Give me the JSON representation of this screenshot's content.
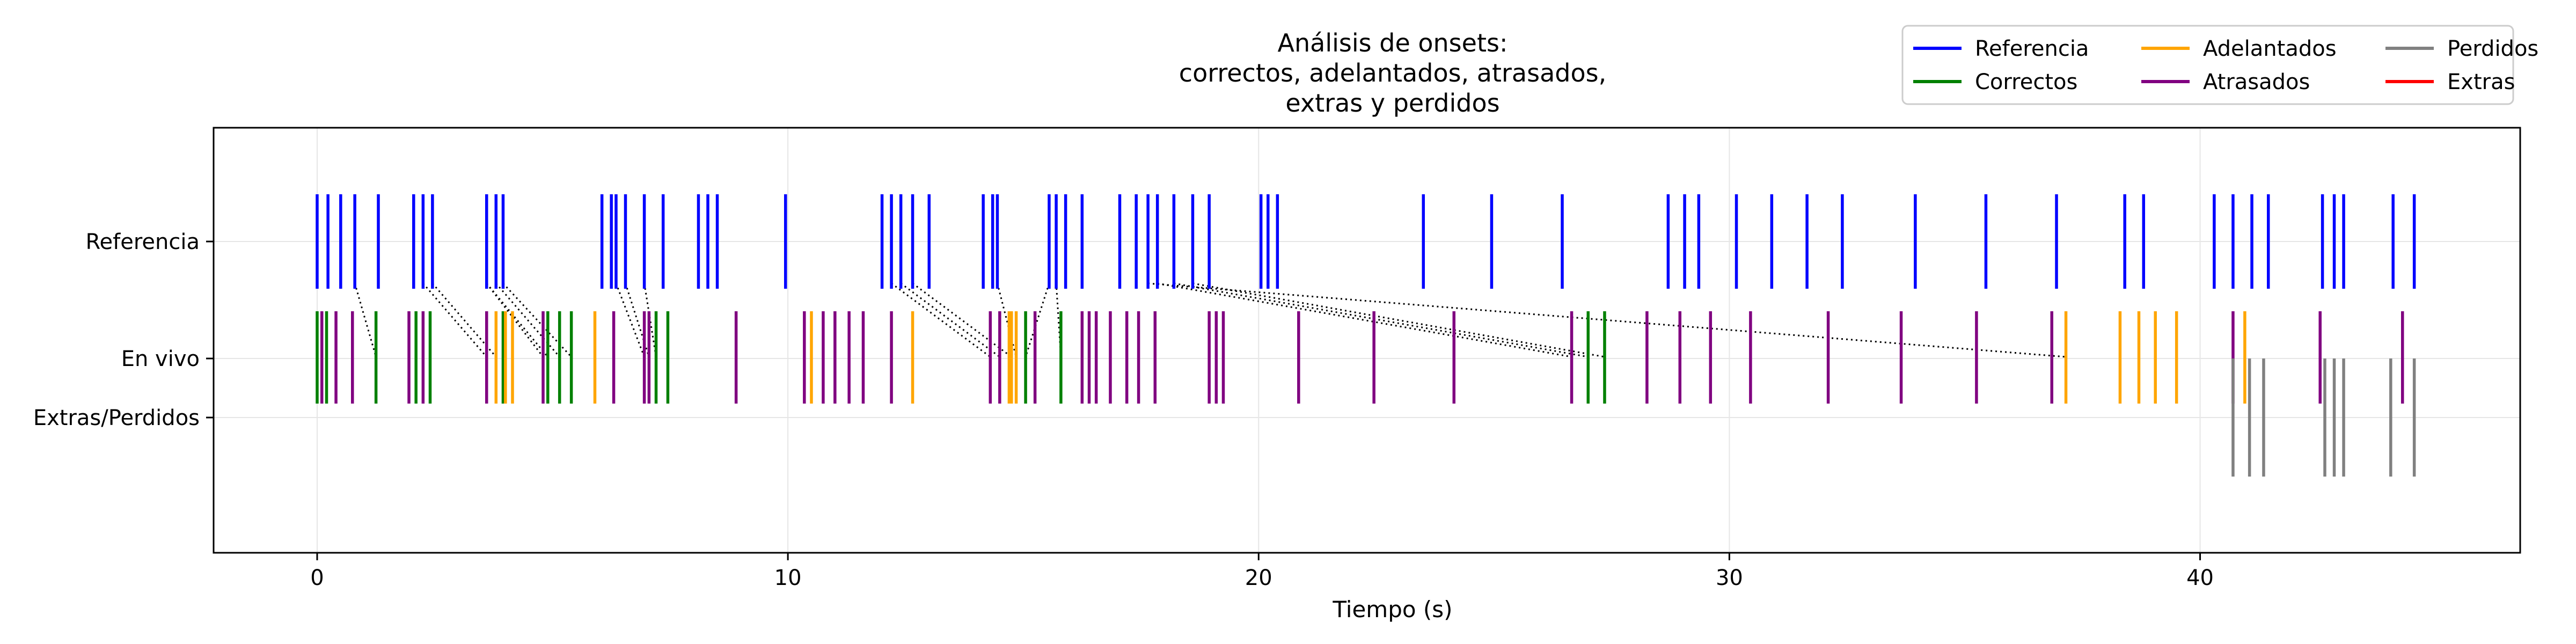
{
  "chart_data": {
    "type": "event-raster",
    "title": [
      "Análisis de onsets:",
      "correctos, adelantados, atrasados,",
      "extras y perdidos"
    ],
    "xlabel": "Tiempo (s)",
    "ylabel": "",
    "xlim": [
      -2.2,
      46.8
    ],
    "x_ticks": [
      0,
      10,
      20,
      30,
      40
    ],
    "rows": [
      "Referencia",
      "En vivo",
      "Extras/Perdidos"
    ],
    "grid": true,
    "legend_position": "top-right",
    "colors": {
      "Referencia": "#0000ff",
      "Correctos": "#008000",
      "Adelantados": "#ffa500",
      "Atrasados": "#800080",
      "Perdidos": "#808080",
      "Extras": "#ff0000",
      "links": "#000000"
    },
    "series": [
      {
        "name": "Referencia",
        "row": "Referencia",
        "color": "#0000ff",
        "x": [
          0.0,
          0.23,
          0.5,
          0.8,
          1.3,
          2.05,
          2.25,
          2.45,
          3.6,
          3.8,
          3.95,
          6.05,
          6.25,
          6.35,
          6.55,
          6.95,
          7.35,
          8.1,
          8.3,
          8.5,
          9.95,
          12.0,
          12.2,
          12.4,
          12.65,
          13.0,
          14.15,
          14.35,
          14.45,
          15.55,
          15.7,
          15.9,
          16.25,
          17.05,
          17.4,
          17.65,
          17.85,
          18.2,
          18.6,
          18.95,
          20.05,
          20.2,
          20.4,
          23.5,
          24.95,
          26.45,
          28.7,
          29.05,
          29.35,
          30.15,
          30.9,
          31.65,
          32.4,
          33.95,
          35.45,
          36.95,
          38.4,
          38.8,
          40.3,
          40.7,
          41.1,
          41.45,
          42.6,
          42.85,
          43.05,
          44.1,
          44.55
        ]
      },
      {
        "name": "Correctos",
        "row": "En vivo",
        "color": "#008000",
        "x": [
          0.0,
          0.2,
          1.25,
          2.1,
          2.4,
          3.95,
          4.9,
          5.15,
          5.4,
          7.2,
          7.45,
          15.05,
          15.8,
          27.0,
          27.35
        ]
      },
      {
        "name": "Adelantados",
        "row": "En vivo",
        "color": "#ffa500",
        "x": [
          3.8,
          4.0,
          4.15,
          5.9,
          10.5,
          12.65,
          14.7,
          14.75,
          14.85,
          37.15,
          38.3,
          38.7,
          39.05,
          39.5,
          40.95
        ]
      },
      {
        "name": "Atrasados",
        "row": "En vivo",
        "color": "#800080",
        "x": [
          0.1,
          0.4,
          0.75,
          1.95,
          2.25,
          3.6,
          4.8,
          6.3,
          6.95,
          7.05,
          8.9,
          10.35,
          10.75,
          11.0,
          11.3,
          11.6,
          12.2,
          14.3,
          14.5,
          15.25,
          16.25,
          16.4,
          16.55,
          16.85,
          17.2,
          17.45,
          17.8,
          18.95,
          19.1,
          19.25,
          20.85,
          22.45,
          24.15,
          26.65,
          28.25,
          28.95,
          29.6,
          30.45,
          32.1,
          33.65,
          35.25,
          36.85,
          40.7,
          42.55,
          44.3
        ]
      },
      {
        "name": "Perdidos",
        "row": "Extras/Perdidos",
        "color": "#808080",
        "x": [
          40.7,
          41.05,
          41.35,
          42.65,
          42.85,
          43.05,
          44.05,
          44.55
        ]
      },
      {
        "name": "Extras",
        "row": "Extras/Perdidos",
        "color": "#ff0000",
        "x": []
      }
    ],
    "links": [
      [
        0.8,
        1.25
      ],
      [
        2.25,
        3.6
      ],
      [
        2.45,
        3.8
      ],
      [
        3.6,
        4.8
      ],
      [
        3.6,
        4.9
      ],
      [
        3.8,
        5.15
      ],
      [
        3.95,
        5.4
      ],
      [
        6.35,
        6.95
      ],
      [
        6.55,
        7.05
      ],
      [
        6.95,
        7.2
      ],
      [
        12.2,
        14.3
      ],
      [
        12.4,
        14.5
      ],
      [
        12.65,
        14.75
      ],
      [
        14.45,
        14.85
      ],
      [
        15.55,
        15.05
      ],
      [
        15.7,
        15.8
      ],
      [
        17.85,
        26.65
      ],
      [
        18.2,
        27.0
      ],
      [
        18.6,
        27.35
      ],
      [
        17.65,
        37.15
      ]
    ]
  }
}
